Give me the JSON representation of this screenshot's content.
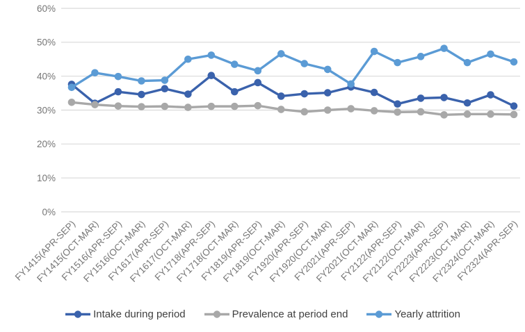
{
  "chart_data": {
    "type": "line",
    "title": "",
    "xlabel": "",
    "ylabel": "",
    "categories": [
      "FY1415(APR-SEP)",
      "FY1415(OCT-MAR)",
      "FY1516(APR-SEP)",
      "FY1516(OCT-MAR)",
      "FY1617(APR-SEP)",
      "FY1617(OCT-MAR)",
      "FY1718(APR-SEP)",
      "FY1718(OCT-MAR)",
      "FY1819(APR-SEP)",
      "FY1819(OCT-MAR)",
      "FY1920(APR-SEP)",
      "FY1920(OCT-MAR)",
      "FY2021(APR-SEP)",
      "FY2021(OCT-MAR)",
      "FY2122(APR-SEP)",
      "FY2122(OCT-MAR)",
      "FY2223(APR-SEP)",
      "FY2223(OCT-MAR)",
      "FY2324(OCT-MAR)",
      "FY2324(APR-SEP)"
    ],
    "series": [
      {
        "name": "Intake during period",
        "color": "#3A62AC",
        "values": [
          37.6,
          32.0,
          35.4,
          34.6,
          36.3,
          34.7,
          40.2,
          35.4,
          38.1,
          34.1,
          34.8,
          35.1,
          36.8,
          35.2,
          31.8,
          33.5,
          33.7,
          32.1,
          34.5,
          31.2
        ]
      },
      {
        "name": "Prevalence at period end",
        "color": "#A8A8A8",
        "values": [
          32.3,
          31.6,
          31.2,
          31.0,
          31.1,
          30.8,
          31.1,
          31.1,
          31.3,
          30.2,
          29.5,
          30.0,
          30.4,
          29.8,
          29.4,
          29.5,
          28.6,
          28.8,
          28.8,
          28.7
        ]
      },
      {
        "name": "Yearly attrition",
        "color": "#5B9BD5",
        "values": [
          36.7,
          41.0,
          39.9,
          38.6,
          38.8,
          45.0,
          46.2,
          43.5,
          41.6,
          46.6,
          43.7,
          42.0,
          37.7,
          47.3,
          44.0,
          45.8,
          48.2,
          44.0,
          46.5,
          44.2
        ]
      }
    ],
    "y_axis": {
      "min": 0,
      "max": 60,
      "step": 10,
      "tick_labels": [
        "0%",
        "10%",
        "20%",
        "30%",
        "40%",
        "50%",
        "60%"
      ]
    },
    "grid": true,
    "legend_position": "bottom",
    "colors": {
      "gridline": "#D9D9D9",
      "axis_text": "#767676",
      "legend_text": "#3f3f3f"
    }
  }
}
